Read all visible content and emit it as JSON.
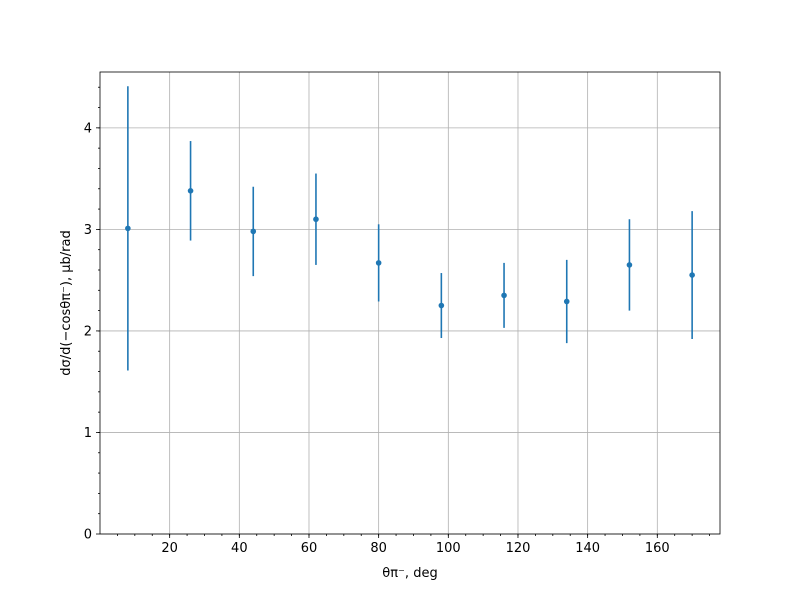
{
  "chart_data": {
    "type": "scatter",
    "title": "",
    "xlabel": "θπ⁻, deg",
    "ylabel": "dσ/d(−cosθπ⁻), μb/rad",
    "xlim": [
      0,
      178
    ],
    "ylim": [
      0,
      4.55
    ],
    "x_ticks": [
      20,
      40,
      60,
      80,
      100,
      120,
      140,
      160
    ],
    "y_ticks": [
      0,
      1,
      2,
      3,
      4
    ],
    "x_minor_step": 5,
    "y_minor_step": 0.2,
    "grid": true,
    "series": [
      {
        "color": "#1f77b4",
        "x": [
          8,
          26,
          44,
          62,
          80,
          98,
          116,
          134,
          152,
          170
        ],
        "y": [
          3.01,
          3.38,
          2.98,
          3.1,
          2.67,
          2.25,
          2.35,
          2.29,
          2.65,
          2.55
        ],
        "yerr": [
          1.4,
          0.49,
          0.44,
          0.45,
          0.38,
          0.32,
          0.32,
          0.41,
          0.45,
          0.63
        ]
      }
    ]
  }
}
